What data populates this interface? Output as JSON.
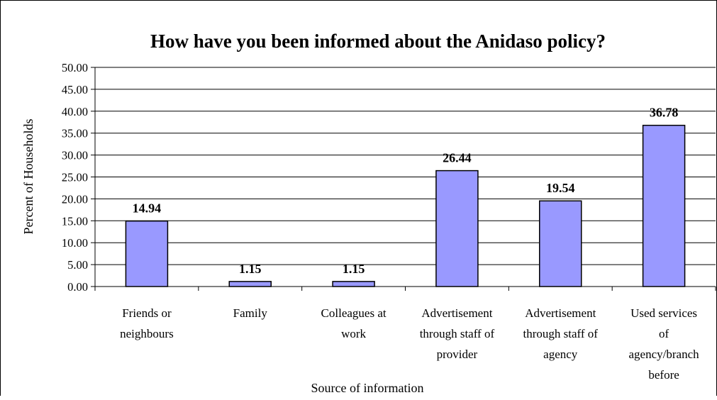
{
  "chart_data": {
    "type": "bar",
    "title": "How have you been informed about the Anidaso policy?",
    "xlabel": "Source of information",
    "ylabel": "Percent of Households",
    "ylim": [
      0,
      50
    ],
    "ytick_step": 5,
    "yticks": [
      "0.00",
      "5.00",
      "10.00",
      "15.00",
      "20.00",
      "25.00",
      "30.00",
      "35.00",
      "40.00",
      "45.00",
      "50.00"
    ],
    "categories": [
      [
        "Friends or",
        "neighbours"
      ],
      [
        "Family"
      ],
      [
        "Colleagues at",
        "work"
      ],
      [
        "Advertisement",
        "through staff of",
        "provider"
      ],
      [
        "Advertisement",
        "through staff of",
        "agency"
      ],
      [
        "Used services",
        "of",
        "agency/branch",
        "before"
      ]
    ],
    "values": [
      14.94,
      1.15,
      1.15,
      26.44,
      19.54,
      36.78
    ],
    "data_labels": [
      "14.94",
      "1.15",
      "1.15",
      "26.44",
      "19.54",
      "36.78"
    ],
    "bar_color": "#9999ff",
    "bar_stroke": "#000000",
    "grid": true,
    "legend": "none"
  }
}
